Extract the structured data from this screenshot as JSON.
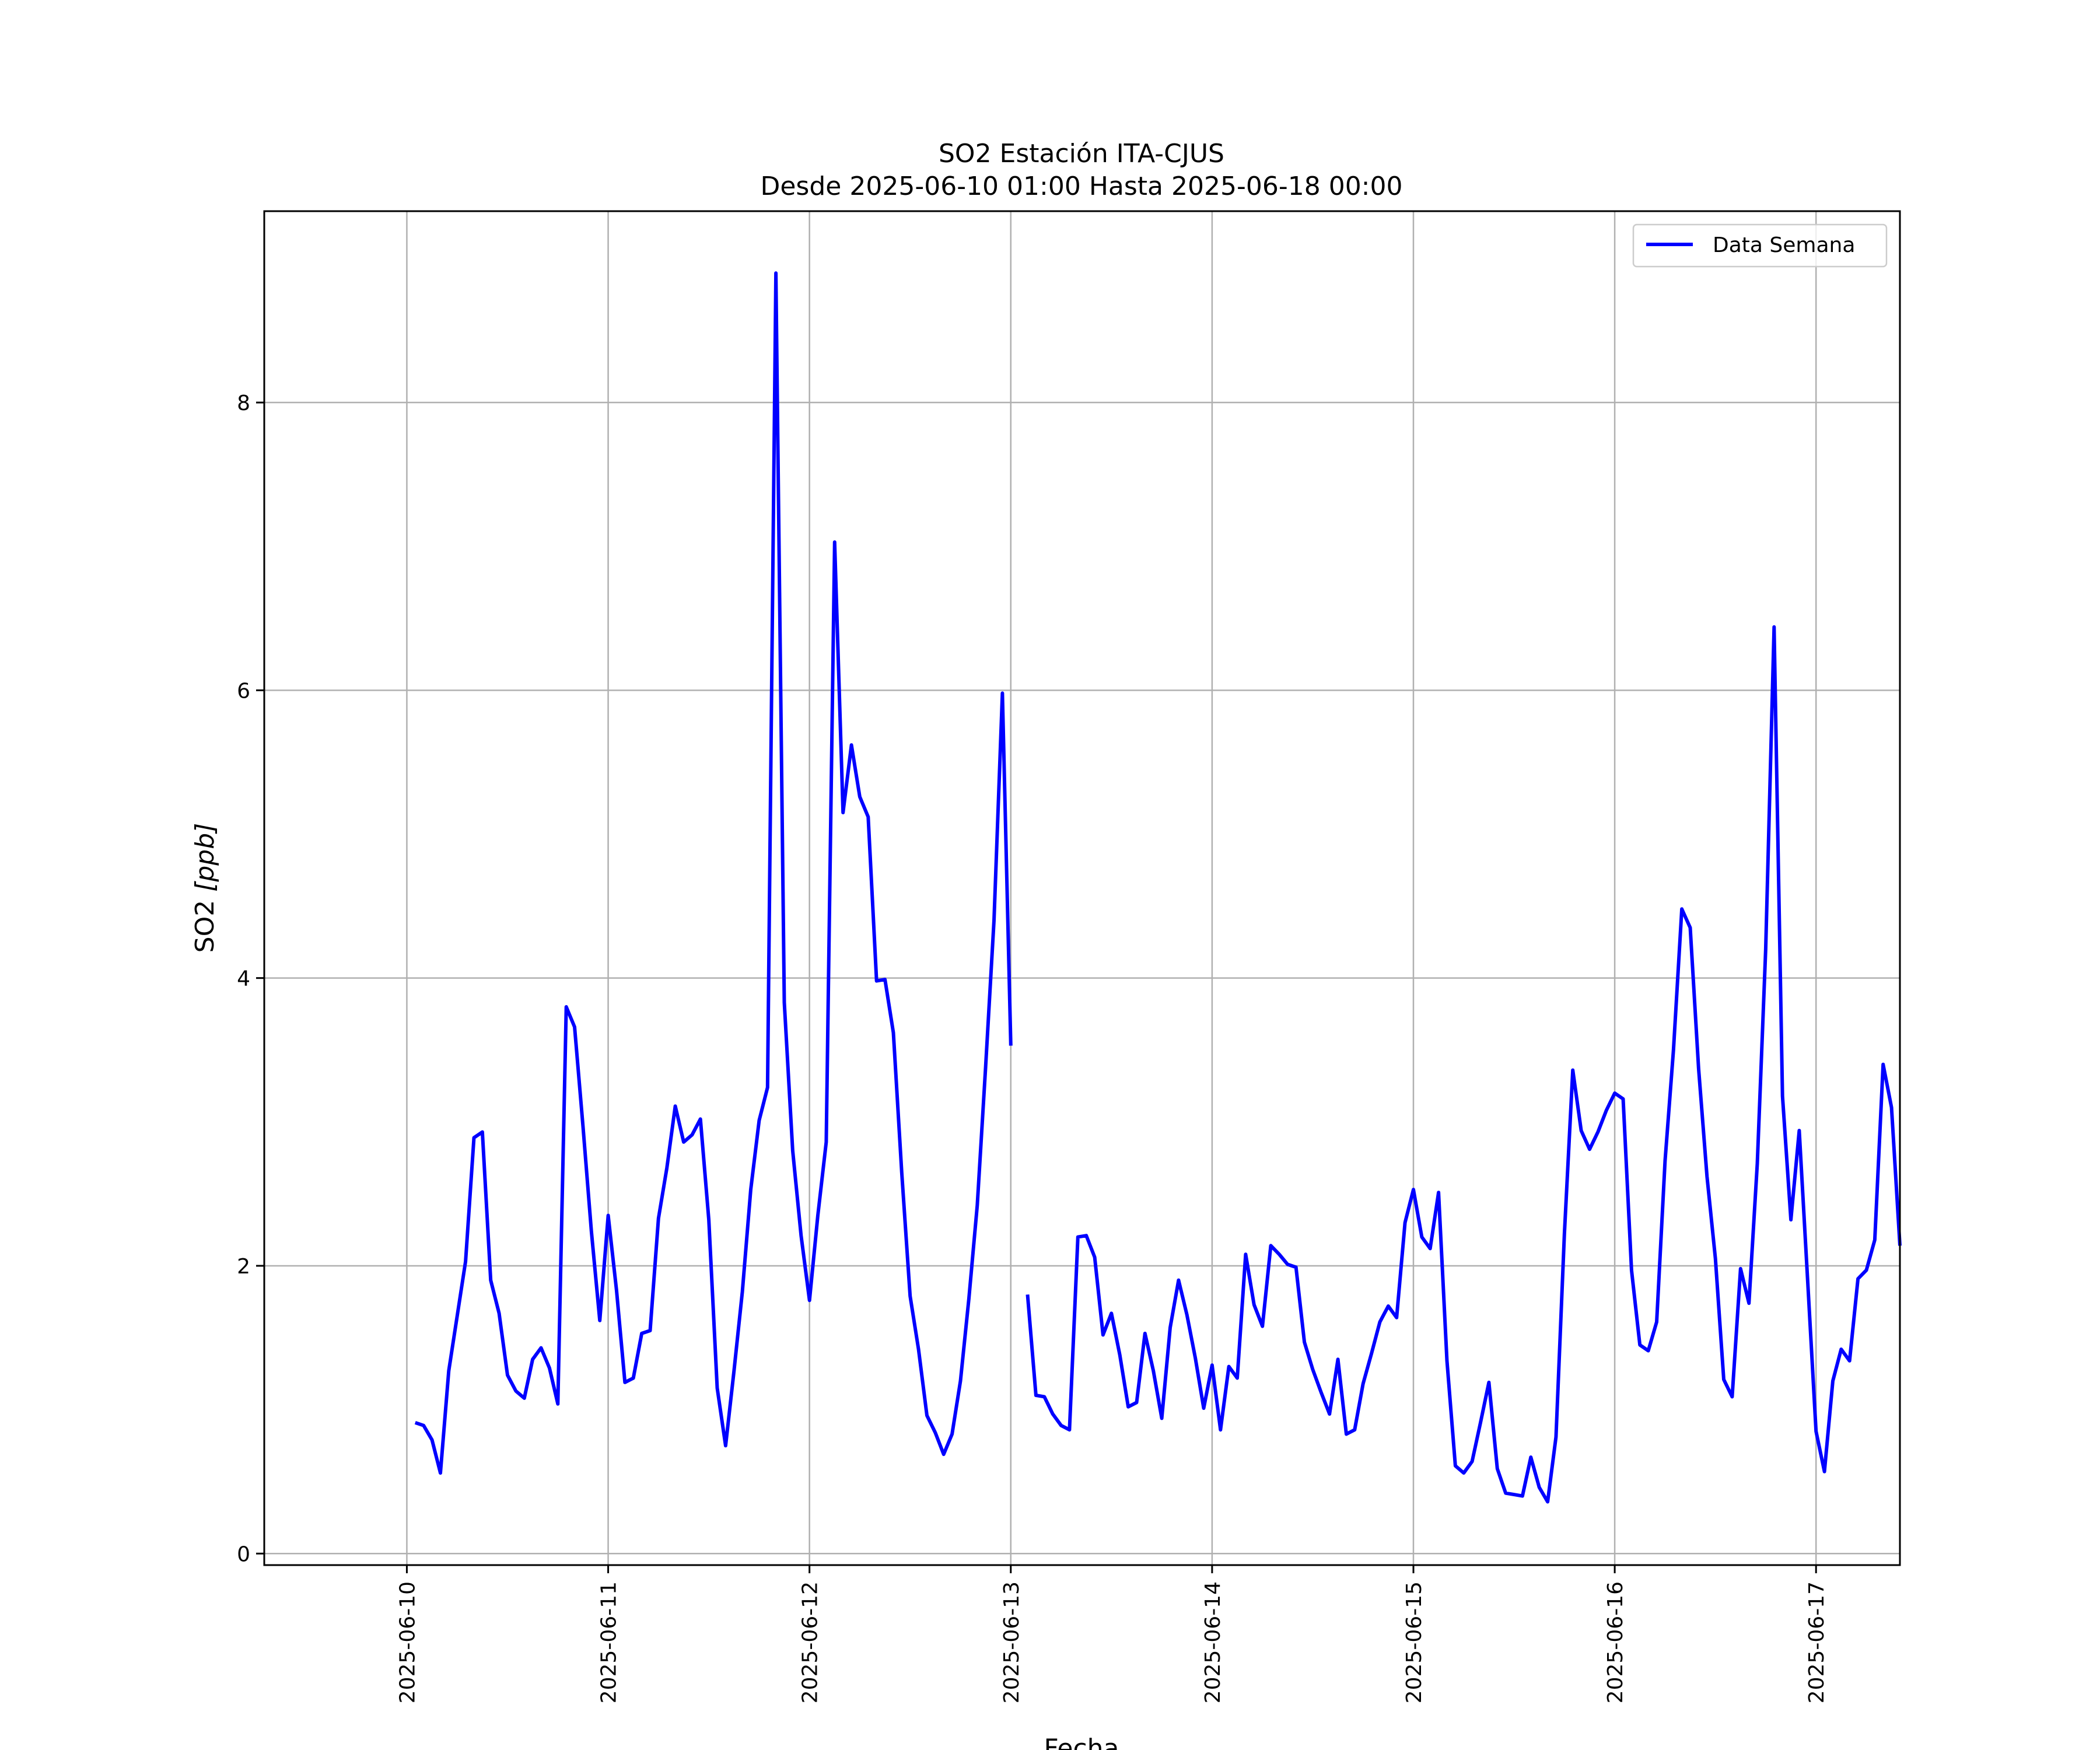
{
  "chart_data": {
    "type": "line",
    "title": "SO2 Estación ITA-CJUS",
    "subtitle": "Desde 2025-06-10 01:00 Hasta 2025-06-18 00:00",
    "xlabel": "Fecha",
    "ylabel_main": "SO2 ",
    "ylabel_unit": "[ppb]",
    "x_ticks": [
      "2025-06-10",
      "2025-06-11",
      "2025-06-12",
      "2025-06-13",
      "2025-06-14",
      "2025-06-15",
      "2025-06-16",
      "2025-06-17"
    ],
    "y_ticks": [
      0,
      2,
      4,
      6,
      8
    ],
    "xlim": [
      "2025-06-09 07:00",
      "2025-06-17 10:00"
    ],
    "ylim": [
      -0.08,
      9.33
    ],
    "grid": true,
    "legend_position": "top-right",
    "series": [
      {
        "name": "Data Semana",
        "color": "#0000ff",
        "points": [
          [
            "2025-06-10 01:00",
            0.91
          ],
          [
            "2025-06-10 02:00",
            0.89
          ],
          [
            "2025-06-10 03:00",
            0.79
          ],
          [
            "2025-06-10 04:00",
            0.56
          ],
          [
            "2025-06-10 05:00",
            1.27
          ],
          [
            "2025-06-10 06:00",
            1.65
          ],
          [
            "2025-06-10 07:00",
            2.03
          ],
          [
            "2025-06-10 08:00",
            2.89
          ],
          [
            "2025-06-10 09:00",
            2.93
          ],
          [
            "2025-06-10 10:00",
            1.9
          ],
          [
            "2025-06-10 11:00",
            1.67
          ],
          [
            "2025-06-10 12:00",
            1.24
          ],
          [
            "2025-06-10 13:00",
            1.13
          ],
          [
            "2025-06-10 14:00",
            1.08
          ],
          [
            "2025-06-10 15:00",
            1.35
          ],
          [
            "2025-06-10 16:00",
            1.43
          ],
          [
            "2025-06-10 17:00",
            1.29
          ],
          [
            "2025-06-10 18:00",
            1.04
          ],
          [
            "2025-06-10 19:00",
            3.8
          ],
          [
            "2025-06-10 20:00",
            3.66
          ],
          [
            "2025-06-10 21:00",
            2.97
          ],
          [
            "2025-06-10 22:00",
            2.24
          ],
          [
            "2025-06-10 23:00",
            1.62
          ],
          [
            "2025-06-11 00:00",
            2.35
          ],
          [
            "2025-06-11 01:00",
            1.83
          ],
          [
            "2025-06-11 02:00",
            1.19
          ],
          [
            "2025-06-11 03:00",
            1.22
          ],
          [
            "2025-06-11 04:00",
            1.53
          ],
          [
            "2025-06-11 05:00",
            1.55
          ],
          [
            "2025-06-11 06:00",
            2.33
          ],
          [
            "2025-06-11 07:00",
            2.68
          ],
          [
            "2025-06-11 08:00",
            3.11
          ],
          [
            "2025-06-11 09:00",
            2.86
          ],
          [
            "2025-06-11 10:00",
            2.91
          ],
          [
            "2025-06-11 11:00",
            3.02
          ],
          [
            "2025-06-11 12:00",
            2.32
          ],
          [
            "2025-06-11 13:00",
            1.15
          ],
          [
            "2025-06-11 14:00",
            0.75
          ],
          [
            "2025-06-11 15:00",
            1.27
          ],
          [
            "2025-06-11 16:00",
            1.82
          ],
          [
            "2025-06-11 17:00",
            2.53
          ],
          [
            "2025-06-11 18:00",
            3.01
          ],
          [
            "2025-06-11 19:00",
            3.24
          ],
          [
            "2025-06-11 20:00",
            8.9
          ],
          [
            "2025-06-11 21:00",
            3.83
          ],
          [
            "2025-06-11 22:00",
            2.8
          ],
          [
            "2025-06-11 23:00",
            2.21
          ],
          [
            "2025-06-12 00:00",
            1.76
          ],
          [
            "2025-06-12 01:00",
            2.35
          ],
          [
            "2025-06-12 02:00",
            2.86
          ],
          [
            "2025-06-12 03:00",
            7.03
          ],
          [
            "2025-06-12 04:00",
            5.15
          ],
          [
            "2025-06-12 05:00",
            5.62
          ],
          [
            "2025-06-12 06:00",
            5.26
          ],
          [
            "2025-06-12 07:00",
            5.12
          ],
          [
            "2025-06-12 08:00",
            3.98
          ],
          [
            "2025-06-12 09:00",
            3.99
          ],
          [
            "2025-06-12 10:00",
            3.62
          ],
          [
            "2025-06-12 11:00",
            2.65
          ],
          [
            "2025-06-12 12:00",
            1.79
          ],
          [
            "2025-06-12 13:00",
            1.42
          ],
          [
            "2025-06-12 14:00",
            0.96
          ],
          [
            "2025-06-12 15:00",
            0.84
          ],
          [
            "2025-06-12 16:00",
            0.69
          ],
          [
            "2025-06-12 17:00",
            0.83
          ],
          [
            "2025-06-12 18:00",
            1.2
          ],
          [
            "2025-06-12 19:00",
            1.77
          ],
          [
            "2025-06-12 20:00",
            2.42
          ],
          [
            "2025-06-12 21:00",
            3.38
          ],
          [
            "2025-06-12 22:00",
            4.4
          ],
          [
            "2025-06-12 23:00",
            5.98
          ],
          [
            "2025-06-13 00:00",
            3.53
          ],
          [
            "2025-06-13 01:00",
            null
          ],
          [
            "2025-06-13 02:00",
            1.8
          ],
          [
            "2025-06-13 03:00",
            1.1
          ],
          [
            "2025-06-13 04:00",
            1.09
          ],
          [
            "2025-06-13 05:00",
            0.97
          ],
          [
            "2025-06-13 06:00",
            0.89
          ],
          [
            "2025-06-13 07:00",
            0.86
          ],
          [
            "2025-06-13 08:00",
            2.2
          ],
          [
            "2025-06-13 09:00",
            2.21
          ],
          [
            "2025-06-13 10:00",
            2.06
          ],
          [
            "2025-06-13 11:00",
            1.52
          ],
          [
            "2025-06-13 12:00",
            1.67
          ],
          [
            "2025-06-13 13:00",
            1.38
          ],
          [
            "2025-06-13 14:00",
            1.02
          ],
          [
            "2025-06-13 15:00",
            1.05
          ],
          [
            "2025-06-13 16:00",
            1.53
          ],
          [
            "2025-06-13 17:00",
            1.27
          ],
          [
            "2025-06-13 18:00",
            0.94
          ],
          [
            "2025-06-13 19:00",
            1.57
          ],
          [
            "2025-06-13 20:00",
            1.9
          ],
          [
            "2025-06-13 21:00",
            1.66
          ],
          [
            "2025-06-13 22:00",
            1.36
          ],
          [
            "2025-06-13 23:00",
            1.01
          ],
          [
            "2025-06-14 00:00",
            1.31
          ],
          [
            "2025-06-14 01:00",
            0.86
          ],
          [
            "2025-06-14 02:00",
            1.3
          ],
          [
            "2025-06-14 03:00",
            1.22
          ],
          [
            "2025-06-14 04:00",
            2.08
          ],
          [
            "2025-06-14 05:00",
            1.73
          ],
          [
            "2025-06-14 06:00",
            1.58
          ],
          [
            "2025-06-14 07:00",
            2.14
          ],
          [
            "2025-06-14 08:00",
            2.08
          ],
          [
            "2025-06-14 09:00",
            2.01
          ],
          [
            "2025-06-14 10:00",
            1.99
          ],
          [
            "2025-06-14 11:00",
            1.47
          ],
          [
            "2025-06-14 12:00",
            1.28
          ],
          [
            "2025-06-14 13:00",
            1.12
          ],
          [
            "2025-06-14 14:00",
            0.97
          ],
          [
            "2025-06-14 15:00",
            1.35
          ],
          [
            "2025-06-14 16:00",
            0.83
          ],
          [
            "2025-06-14 17:00",
            0.86
          ],
          [
            "2025-06-14 18:00",
            1.18
          ],
          [
            "2025-06-14 19:00",
            1.39
          ],
          [
            "2025-06-14 20:00",
            1.61
          ],
          [
            "2025-06-14 21:00",
            1.72
          ],
          [
            "2025-06-14 22:00",
            1.64
          ],
          [
            "2025-06-14 23:00",
            2.3
          ],
          [
            "2025-06-15 00:00",
            2.53
          ],
          [
            "2025-06-15 01:00",
            2.2
          ],
          [
            "2025-06-15 02:00",
            2.12
          ],
          [
            "2025-06-15 03:00",
            2.51
          ],
          [
            "2025-06-15 04:00",
            1.34
          ],
          [
            "2025-06-15 05:00",
            0.61
          ],
          [
            "2025-06-15 06:00",
            0.56
          ],
          [
            "2025-06-15 07:00",
            0.64
          ],
          [
            "2025-06-15 08:00",
            0.91
          ],
          [
            "2025-06-15 09:00",
            1.19
          ],
          [
            "2025-06-15 10:00",
            0.59
          ],
          [
            "2025-06-15 11:00",
            0.42
          ],
          [
            "2025-06-15 12:00",
            0.41
          ],
          [
            "2025-06-15 13:00",
            0.4
          ],
          [
            "2025-06-15 14:00",
            0.67
          ],
          [
            "2025-06-15 15:00",
            0.46
          ],
          [
            "2025-06-15 16:00",
            0.36
          ],
          [
            "2025-06-15 17:00",
            0.81
          ],
          [
            "2025-06-15 18:00",
            2.22
          ],
          [
            "2025-06-15 19:00",
            3.36
          ],
          [
            "2025-06-15 20:00",
            2.94
          ],
          [
            "2025-06-15 21:00",
            2.81
          ],
          [
            "2025-06-15 22:00",
            2.93
          ],
          [
            "2025-06-15 23:00",
            3.08
          ],
          [
            "2025-06-16 00:00",
            3.2
          ],
          [
            "2025-06-16 01:00",
            3.16
          ],
          [
            "2025-06-16 02:00",
            1.97
          ],
          [
            "2025-06-16 03:00",
            1.45
          ],
          [
            "2025-06-16 04:00",
            1.41
          ],
          [
            "2025-06-16 05:00",
            1.61
          ],
          [
            "2025-06-16 06:00",
            2.73
          ],
          [
            "2025-06-16 07:00",
            3.5
          ],
          [
            "2025-06-16 08:00",
            4.48
          ],
          [
            "2025-06-16 09:00",
            4.35
          ],
          [
            "2025-06-16 10:00",
            3.37
          ],
          [
            "2025-06-16 11:00",
            2.62
          ],
          [
            "2025-06-16 12:00",
            2.05
          ],
          [
            "2025-06-16 13:00",
            1.21
          ],
          [
            "2025-06-16 14:00",
            1.09
          ],
          [
            "2025-06-16 15:00",
            1.98
          ],
          [
            "2025-06-16 16:00",
            1.74
          ],
          [
            "2025-06-16 17:00",
            2.71
          ],
          [
            "2025-06-16 18:00",
            4.2
          ],
          [
            "2025-06-16 19:00",
            6.44
          ],
          [
            "2025-06-16 20:00",
            3.18
          ],
          [
            "2025-06-16 21:00",
            2.32
          ],
          [
            "2025-06-16 22:00",
            2.94
          ],
          [
            "2025-06-16 23:00",
            1.9
          ],
          [
            "2025-06-17 00:00",
            0.85
          ],
          [
            "2025-06-17 01:00",
            0.57
          ],
          [
            "2025-06-17 02:00",
            1.2
          ],
          [
            "2025-06-17 03:00",
            1.42
          ],
          [
            "2025-06-17 04:00",
            1.34
          ],
          [
            "2025-06-17 05:00",
            1.91
          ],
          [
            "2025-06-17 06:00",
            1.97
          ],
          [
            "2025-06-17 07:00",
            2.18
          ],
          [
            "2025-06-17 08:00",
            3.4
          ],
          [
            "2025-06-17 09:00",
            3.1
          ],
          [
            "2025-06-17 10:00",
            2.14
          ]
        ]
      }
    ]
  }
}
